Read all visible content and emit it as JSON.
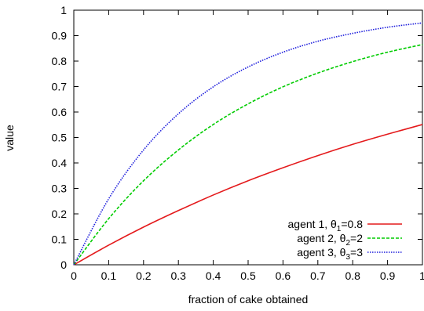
{
  "chart_data": {
    "type": "line",
    "title": "",
    "xlabel": "fraction of cake obtained",
    "ylabel": "value",
    "xlim": [
      0,
      1
    ],
    "ylim": [
      0,
      1
    ],
    "xticks": [
      "0",
      "0.1",
      "0.2",
      "0.3",
      "0.4",
      "0.5",
      "0.6",
      "0.7",
      "0.8",
      "0.9",
      "1"
    ],
    "yticks": [
      "0",
      "0.1",
      "0.2",
      "0.3",
      "0.4",
      "0.5",
      "0.6",
      "0.7",
      "0.8",
      "0.9",
      "1"
    ],
    "grid": false,
    "legend_position": "bottom-right",
    "x": [
      0,
      0.1,
      0.2,
      0.3,
      0.4,
      0.5,
      0.6,
      0.7,
      0.8,
      0.9,
      1
    ],
    "series": [
      {
        "name": "agent 1, θ1=0.8",
        "legend_agent": "agent 1, θ",
        "legend_sub": "1",
        "legend_value": "=0.8",
        "color": "#e41a1c",
        "style": "solid",
        "values": [
          0,
          0.077,
          0.148,
          0.213,
          0.274,
          0.33,
          0.381,
          0.429,
          0.473,
          0.513,
          0.551
        ]
      },
      {
        "name": "agent 2, θ2=2",
        "legend_agent": "agent 2, θ",
        "legend_sub": "2",
        "legend_value": "=2",
        "color": "#00cc00",
        "style": "dashed",
        "values": [
          0,
          0.181,
          0.33,
          0.451,
          0.551,
          0.632,
          0.699,
          0.753,
          0.798,
          0.835,
          0.865
        ]
      },
      {
        "name": "agent 3, θ3=3",
        "legend_agent": "agent 3, θ",
        "legend_sub": "3",
        "legend_value": "=3",
        "color": "#1c1cdc",
        "style": "dotted",
        "values": [
          0,
          0.259,
          0.451,
          0.593,
          0.699,
          0.777,
          0.835,
          0.878,
          0.909,
          0.933,
          0.95
        ]
      }
    ]
  }
}
